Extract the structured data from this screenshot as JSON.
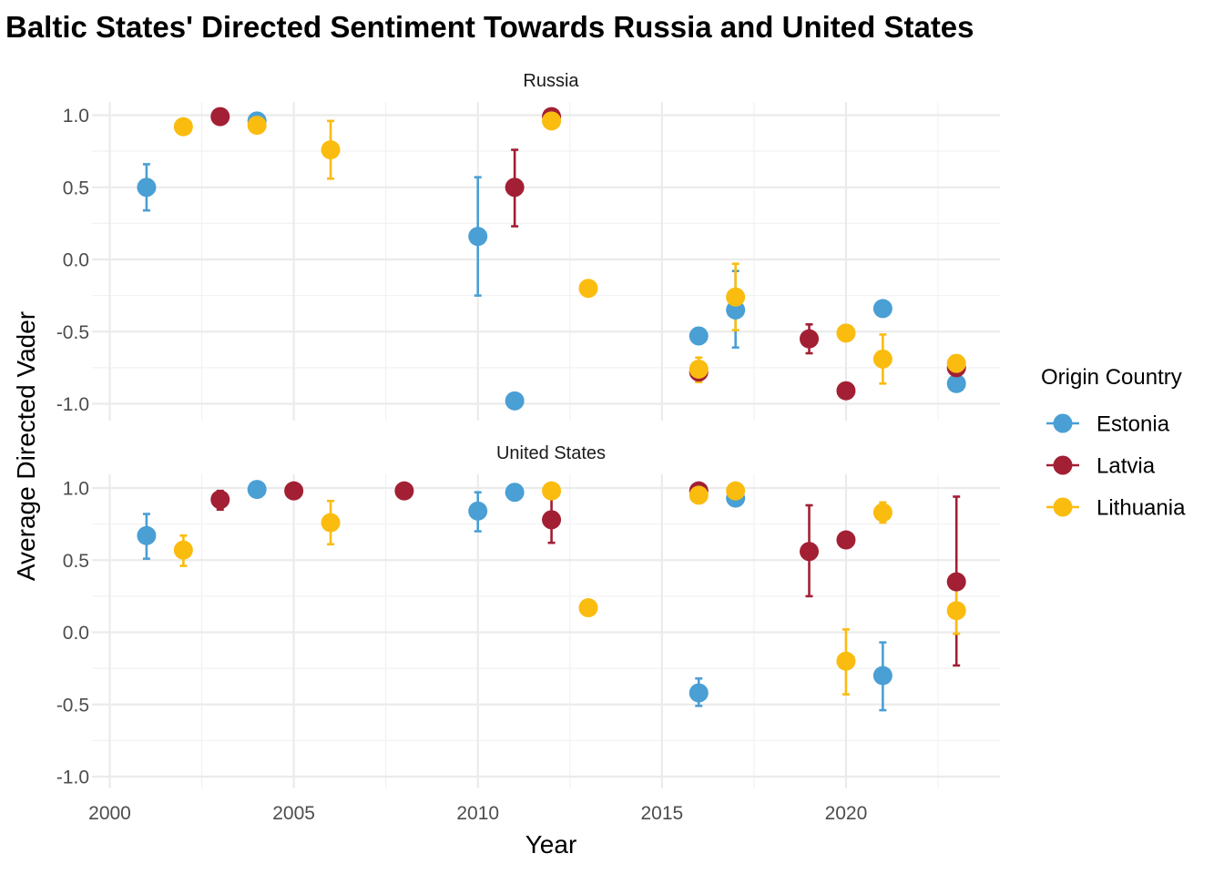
{
  "chart_data": {
    "type": "scatter",
    "title": "Baltic States' Directed Sentiment Towards Russia and United States",
    "xlabel": "Year",
    "ylabel": "Average Directed Vader",
    "xlim": [
      2000,
      2024
    ],
    "ylim": [
      -1.0,
      1.0
    ],
    "x_ticks": [
      2000,
      2005,
      2010,
      2015,
      2020
    ],
    "y_ticks": [
      -1.0,
      -0.5,
      0.0,
      0.5,
      1.0
    ],
    "y_tick_labels": [
      "-1.0",
      "-0.5",
      "0.0",
      "0.5",
      "1.0"
    ],
    "grid": true,
    "legend": {
      "title": "Origin Country",
      "position": "right",
      "entries": [
        "Estonia",
        "Latvia",
        "Lithuania"
      ]
    },
    "colors": {
      "Estonia": "#4a9fd4",
      "Latvia": "#a21f34",
      "Lithuania": "#fbbc10"
    },
    "panels": [
      {
        "label": "Russia",
        "series": [
          {
            "name": "Estonia",
            "points": [
              {
                "x": 2001,
                "y": 0.5,
                "lo": 0.34,
                "hi": 0.66
              },
              {
                "x": 2004,
                "y": 0.96
              },
              {
                "x": 2010,
                "y": 0.16,
                "lo": -0.25,
                "hi": 0.57
              },
              {
                "x": 2011,
                "y": -0.98
              },
              {
                "x": 2016,
                "y": -0.53
              },
              {
                "x": 2017,
                "y": -0.35,
                "lo": -0.61,
                "hi": -0.08
              },
              {
                "x": 2021,
                "y": -0.34
              },
              {
                "x": 2023,
                "y": -0.86
              }
            ]
          },
          {
            "name": "Latvia",
            "points": [
              {
                "x": 2003,
                "y": 0.99
              },
              {
                "x": 2011,
                "y": 0.5,
                "lo": 0.23,
                "hi": 0.76
              },
              {
                "x": 2012,
                "y": 0.99
              },
              {
                "x": 2016,
                "y": -0.78,
                "lo": -0.83,
                "hi": -0.73
              },
              {
                "x": 2019,
                "y": -0.55,
                "lo": -0.65,
                "hi": -0.45
              },
              {
                "x": 2020,
                "y": -0.91
              },
              {
                "x": 2023,
                "y": -0.75,
                "lo": -0.79,
                "hi": -0.71
              }
            ]
          },
          {
            "name": "Lithuania",
            "points": [
              {
                "x": 2002,
                "y": 0.92
              },
              {
                "x": 2004,
                "y": 0.93,
                "lo": 0.92,
                "hi": 0.95
              },
              {
                "x": 2006,
                "y": 0.76,
                "lo": 0.56,
                "hi": 0.96
              },
              {
                "x": 2012,
                "y": 0.96
              },
              {
                "x": 2013,
                "y": -0.2
              },
              {
                "x": 2016,
                "y": -0.76,
                "lo": -0.85,
                "hi": -0.68
              },
              {
                "x": 2017,
                "y": -0.26,
                "lo": -0.49,
                "hi": -0.03
              },
              {
                "x": 2020,
                "y": -0.51
              },
              {
                "x": 2021,
                "y": -0.69,
                "lo": -0.86,
                "hi": -0.52
              },
              {
                "x": 2023,
                "y": -0.72,
                "lo": -0.76,
                "hi": -0.69
              }
            ]
          }
        ]
      },
      {
        "label": "United States",
        "series": [
          {
            "name": "Estonia",
            "points": [
              {
                "x": 2001,
                "y": 0.67,
                "lo": 0.51,
                "hi": 0.82
              },
              {
                "x": 2004,
                "y": 0.99
              },
              {
                "x": 2010,
                "y": 0.84,
                "lo": 0.7,
                "hi": 0.97
              },
              {
                "x": 2011,
                "y": 0.97
              },
              {
                "x": 2016,
                "y": -0.42,
                "lo": -0.51,
                "hi": -0.32
              },
              {
                "x": 2017,
                "y": 0.93,
                "lo": 0.91,
                "hi": 0.96
              },
              {
                "x": 2021,
                "y": -0.3,
                "lo": -0.54,
                "hi": -0.07
              }
            ]
          },
          {
            "name": "Latvia",
            "points": [
              {
                "x": 2003,
                "y": 0.92,
                "lo": 0.85,
                "hi": 0.98
              },
              {
                "x": 2005,
                "y": 0.98
              },
              {
                "x": 2008,
                "y": 0.98
              },
              {
                "x": 2012,
                "y": 0.78,
                "lo": 0.62,
                "hi": 0.93
              },
              {
                "x": 2016,
                "y": 0.98
              },
              {
                "x": 2019,
                "y": 0.56,
                "lo": 0.25,
                "hi": 0.88
              },
              {
                "x": 2020,
                "y": 0.64
              },
              {
                "x": 2023,
                "y": 0.35,
                "lo": -0.23,
                "hi": 0.94
              }
            ]
          },
          {
            "name": "Lithuania",
            "points": [
              {
                "x": 2002,
                "y": 0.57,
                "lo": 0.46,
                "hi": 0.67
              },
              {
                "x": 2006,
                "y": 0.76,
                "lo": 0.61,
                "hi": 0.91
              },
              {
                "x": 2012,
                "y": 0.98
              },
              {
                "x": 2013,
                "y": 0.17
              },
              {
                "x": 2016,
                "y": 0.95
              },
              {
                "x": 2017,
                "y": 0.98
              },
              {
                "x": 2020,
                "y": -0.2,
                "lo": -0.43,
                "hi": 0.02
              },
              {
                "x": 2021,
                "y": 0.83,
                "lo": 0.76,
                "hi": 0.9
              },
              {
                "x": 2023,
                "y": 0.15,
                "lo": -0.01,
                "hi": 0.3
              }
            ]
          }
        ]
      }
    ]
  }
}
